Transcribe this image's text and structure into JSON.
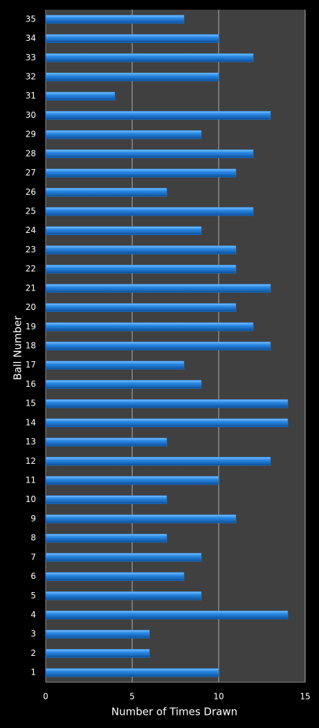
{
  "chart_data": {
    "type": "bar",
    "orientation": "horizontal",
    "x_label": "Number of Times Drawn",
    "y_label": "Ball Number",
    "categories": [
      "1",
      "2",
      "3",
      "4",
      "5",
      "6",
      "7",
      "8",
      "9",
      "10",
      "11",
      "12",
      "13",
      "14",
      "15",
      "16",
      "17",
      "18",
      "19",
      "20",
      "21",
      "22",
      "23",
      "24",
      "25",
      "26",
      "27",
      "28",
      "29",
      "30",
      "31",
      "32",
      "33",
      "34",
      "35"
    ],
    "values": [
      10,
      6,
      6,
      14,
      9,
      8,
      9,
      7,
      11,
      7,
      10,
      13,
      7,
      14,
      14,
      9,
      8,
      13,
      12,
      11,
      13,
      11,
      11,
      9,
      12,
      7,
      11,
      12,
      9,
      13,
      4,
      10,
      12,
      10,
      8
    ],
    "color": "#1f7fd8",
    "xlim": [
      0,
      15
    ],
    "xticks": [
      0,
      5,
      10,
      15
    ],
    "grid": true
  }
}
